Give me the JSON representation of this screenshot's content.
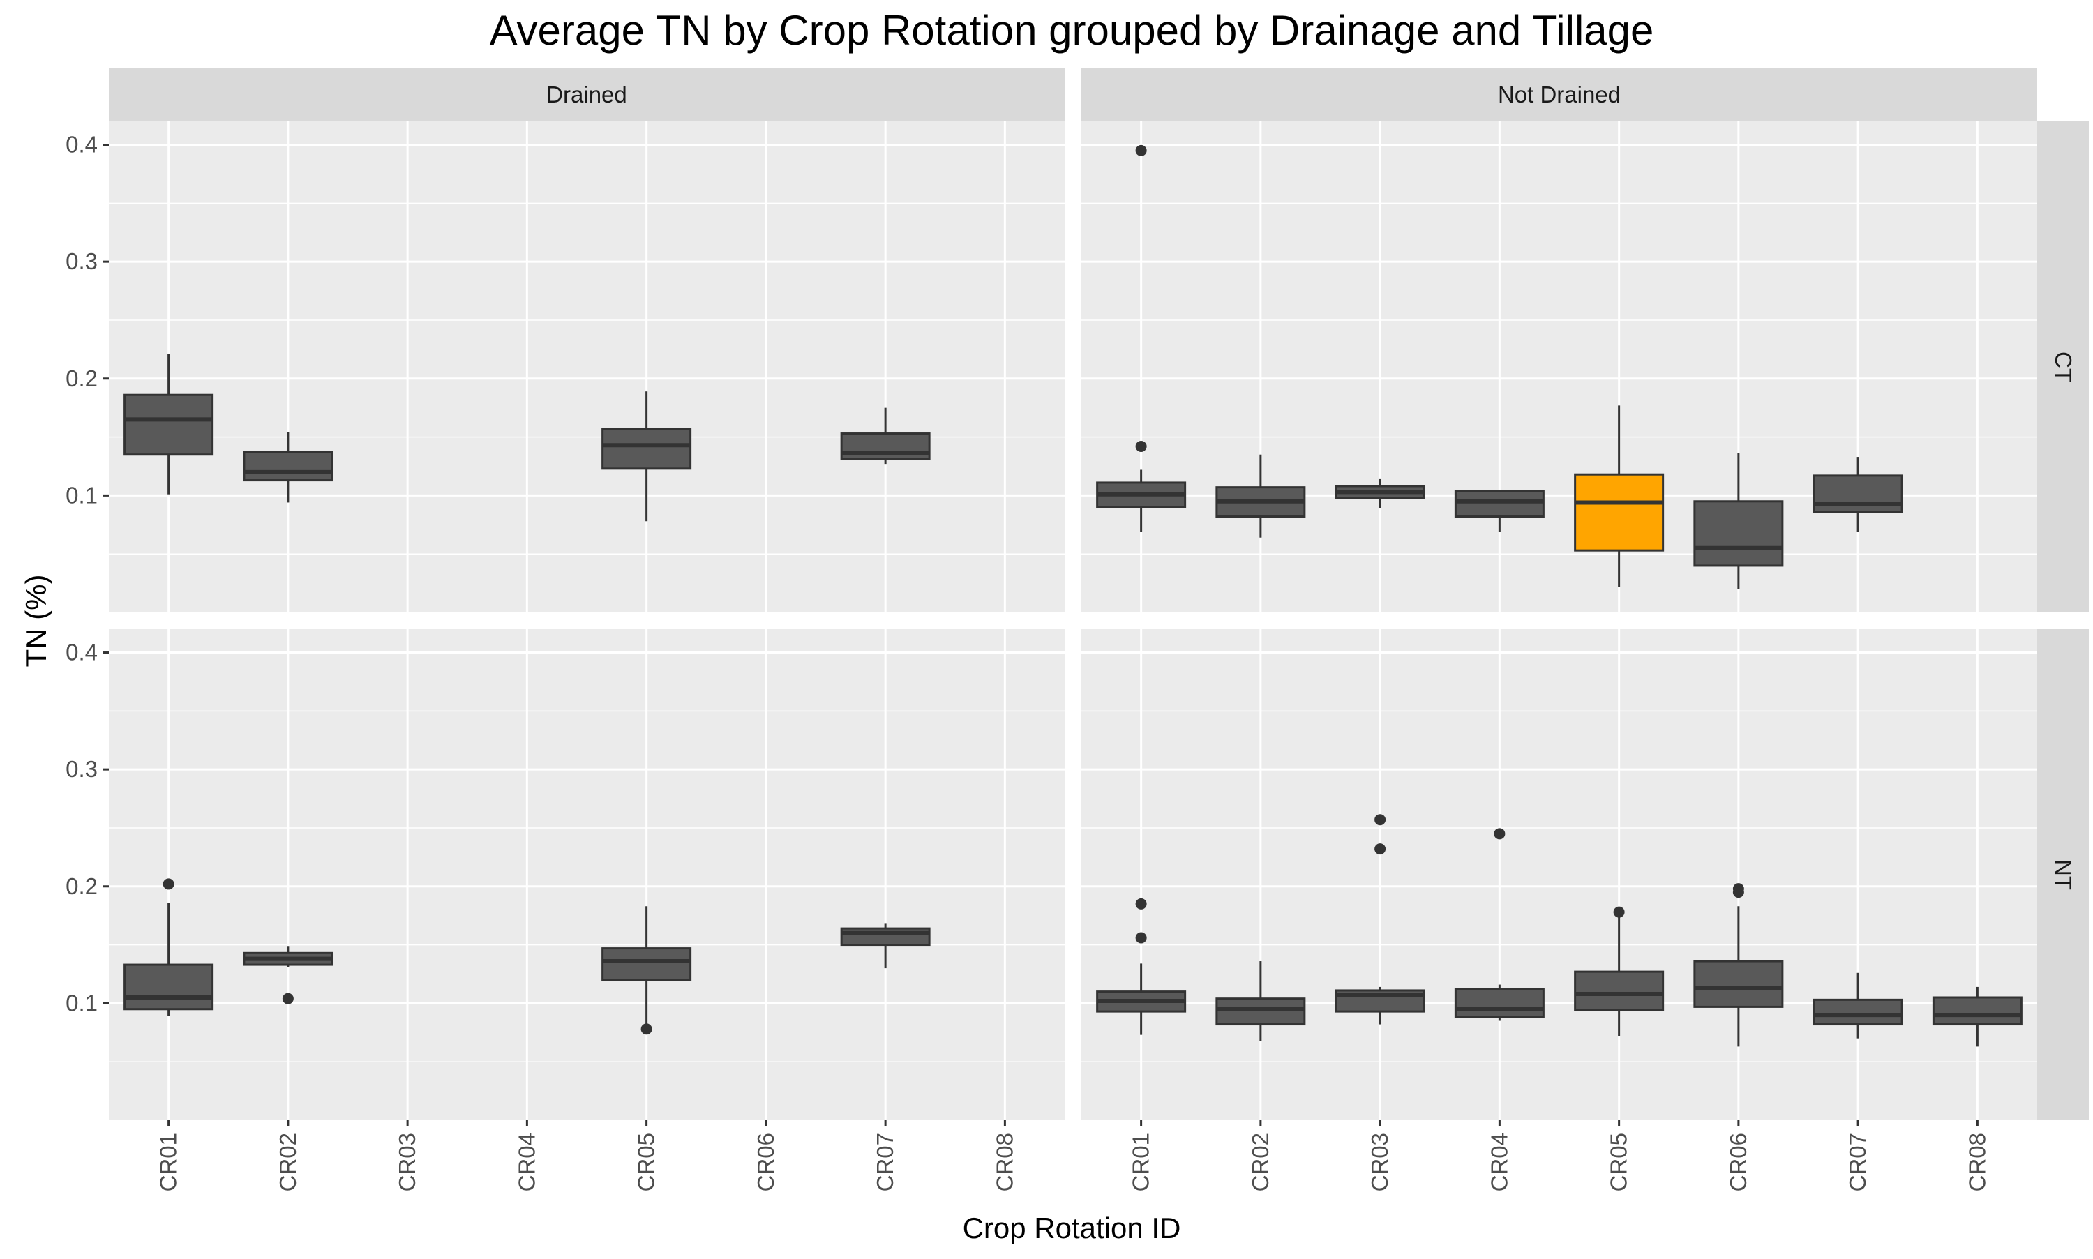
{
  "chart_data": {
    "type": "box",
    "title": "Average TN by Crop Rotation grouped by Drainage and Tillage",
    "xlabel": "Crop Rotation ID",
    "ylabel": "TN (%)",
    "categories": [
      "CR01",
      "CR02",
      "CR03",
      "CR04",
      "CR05",
      "CR06",
      "CR07",
      "CR08"
    ],
    "ylim": [
      0.0,
      0.42
    ],
    "yticks": [
      0.1,
      0.2,
      0.3,
      0.4
    ],
    "ytick_labels": [
      "0.1",
      "0.2",
      "0.3",
      "0.4"
    ],
    "grid": true,
    "facet_columns": [
      "Drained",
      "Not Drained"
    ],
    "facet_rows": [
      "CT",
      "NT"
    ],
    "box_fill": "#595959",
    "highlight_fill": "#FFA500",
    "panels": [
      {
        "column": "Drained",
        "row": "CT",
        "boxes": [
          {
            "category": "CR01",
            "min": 0.101,
            "q1": 0.135,
            "median": 0.165,
            "q3": 0.186,
            "max": 0.221,
            "outliers": []
          },
          {
            "category": "CR02",
            "min": 0.094,
            "q1": 0.113,
            "median": 0.12,
            "q3": 0.137,
            "max": 0.154,
            "outliers": []
          },
          {
            "category": "CR05",
            "min": 0.078,
            "q1": 0.123,
            "median": 0.143,
            "q3": 0.157,
            "max": 0.189,
            "outliers": []
          },
          {
            "category": "CR07",
            "min": 0.127,
            "q1": 0.131,
            "median": 0.136,
            "q3": 0.153,
            "max": 0.175,
            "outliers": []
          }
        ]
      },
      {
        "column": "Not Drained",
        "row": "CT",
        "boxes": [
          {
            "category": "CR01",
            "min": 0.069,
            "q1": 0.09,
            "median": 0.101,
            "q3": 0.111,
            "max": 0.122,
            "outliers": [
              0.395,
              0.142
            ]
          },
          {
            "category": "CR02",
            "min": 0.064,
            "q1": 0.082,
            "median": 0.095,
            "q3": 0.107,
            "max": 0.135,
            "outliers": []
          },
          {
            "category": "CR03",
            "min": 0.089,
            "q1": 0.098,
            "median": 0.103,
            "q3": 0.108,
            "max": 0.114,
            "outliers": []
          },
          {
            "category": "CR04",
            "min": 0.069,
            "q1": 0.082,
            "median": 0.095,
            "q3": 0.104,
            "max": 0.104,
            "outliers": []
          },
          {
            "category": "CR05",
            "min": 0.022,
            "q1": 0.053,
            "median": 0.094,
            "q3": 0.118,
            "max": 0.177,
            "outliers": [],
            "highlight": true
          },
          {
            "category": "CR06",
            "min": 0.02,
            "q1": 0.04,
            "median": 0.055,
            "q3": 0.095,
            "max": 0.136,
            "outliers": []
          },
          {
            "category": "CR07",
            "min": 0.069,
            "q1": 0.086,
            "median": 0.093,
            "q3": 0.117,
            "max": 0.133,
            "outliers": []
          }
        ]
      },
      {
        "column": "Drained",
        "row": "NT",
        "boxes": [
          {
            "category": "CR01",
            "min": 0.089,
            "q1": 0.095,
            "median": 0.105,
            "q3": 0.133,
            "max": 0.186,
            "outliers": [
              0.202
            ]
          },
          {
            "category": "CR02",
            "min": 0.131,
            "q1": 0.133,
            "median": 0.138,
            "q3": 0.143,
            "max": 0.149,
            "outliers": [
              0.104
            ]
          },
          {
            "category": "CR05",
            "min": 0.082,
            "q1": 0.12,
            "median": 0.136,
            "q3": 0.147,
            "max": 0.183,
            "outliers": [
              0.078
            ]
          },
          {
            "category": "CR07",
            "min": 0.13,
            "q1": 0.15,
            "median": 0.16,
            "q3": 0.164,
            "max": 0.168,
            "outliers": []
          }
        ]
      },
      {
        "column": "Not Drained",
        "row": "NT",
        "boxes": [
          {
            "category": "CR01",
            "min": 0.073,
            "q1": 0.093,
            "median": 0.102,
            "q3": 0.11,
            "max": 0.134,
            "outliers": [
              0.185,
              0.156
            ]
          },
          {
            "category": "CR02",
            "min": 0.068,
            "q1": 0.082,
            "median": 0.095,
            "q3": 0.104,
            "max": 0.136,
            "outliers": []
          },
          {
            "category": "CR03",
            "min": 0.082,
            "q1": 0.093,
            "median": 0.107,
            "q3": 0.111,
            "max": 0.114,
            "outliers": [
              0.257,
              0.232
            ]
          },
          {
            "category": "CR04",
            "min": 0.085,
            "q1": 0.088,
            "median": 0.095,
            "q3": 0.112,
            "max": 0.116,
            "outliers": [
              0.245
            ]
          },
          {
            "category": "CR05",
            "min": 0.072,
            "q1": 0.094,
            "median": 0.108,
            "q3": 0.127,
            "max": 0.177,
            "outliers": [
              0.178
            ]
          },
          {
            "category": "CR06",
            "min": 0.063,
            "q1": 0.097,
            "median": 0.113,
            "q3": 0.136,
            "max": 0.183,
            "outliers": [
              0.198,
              0.195
            ]
          },
          {
            "category": "CR07",
            "min": 0.07,
            "q1": 0.082,
            "median": 0.09,
            "q3": 0.103,
            "max": 0.126,
            "outliers": []
          },
          {
            "category": "CR08",
            "min": 0.063,
            "q1": 0.082,
            "median": 0.09,
            "q3": 0.105,
            "max": 0.114,
            "outliers": []
          }
        ]
      }
    ]
  }
}
